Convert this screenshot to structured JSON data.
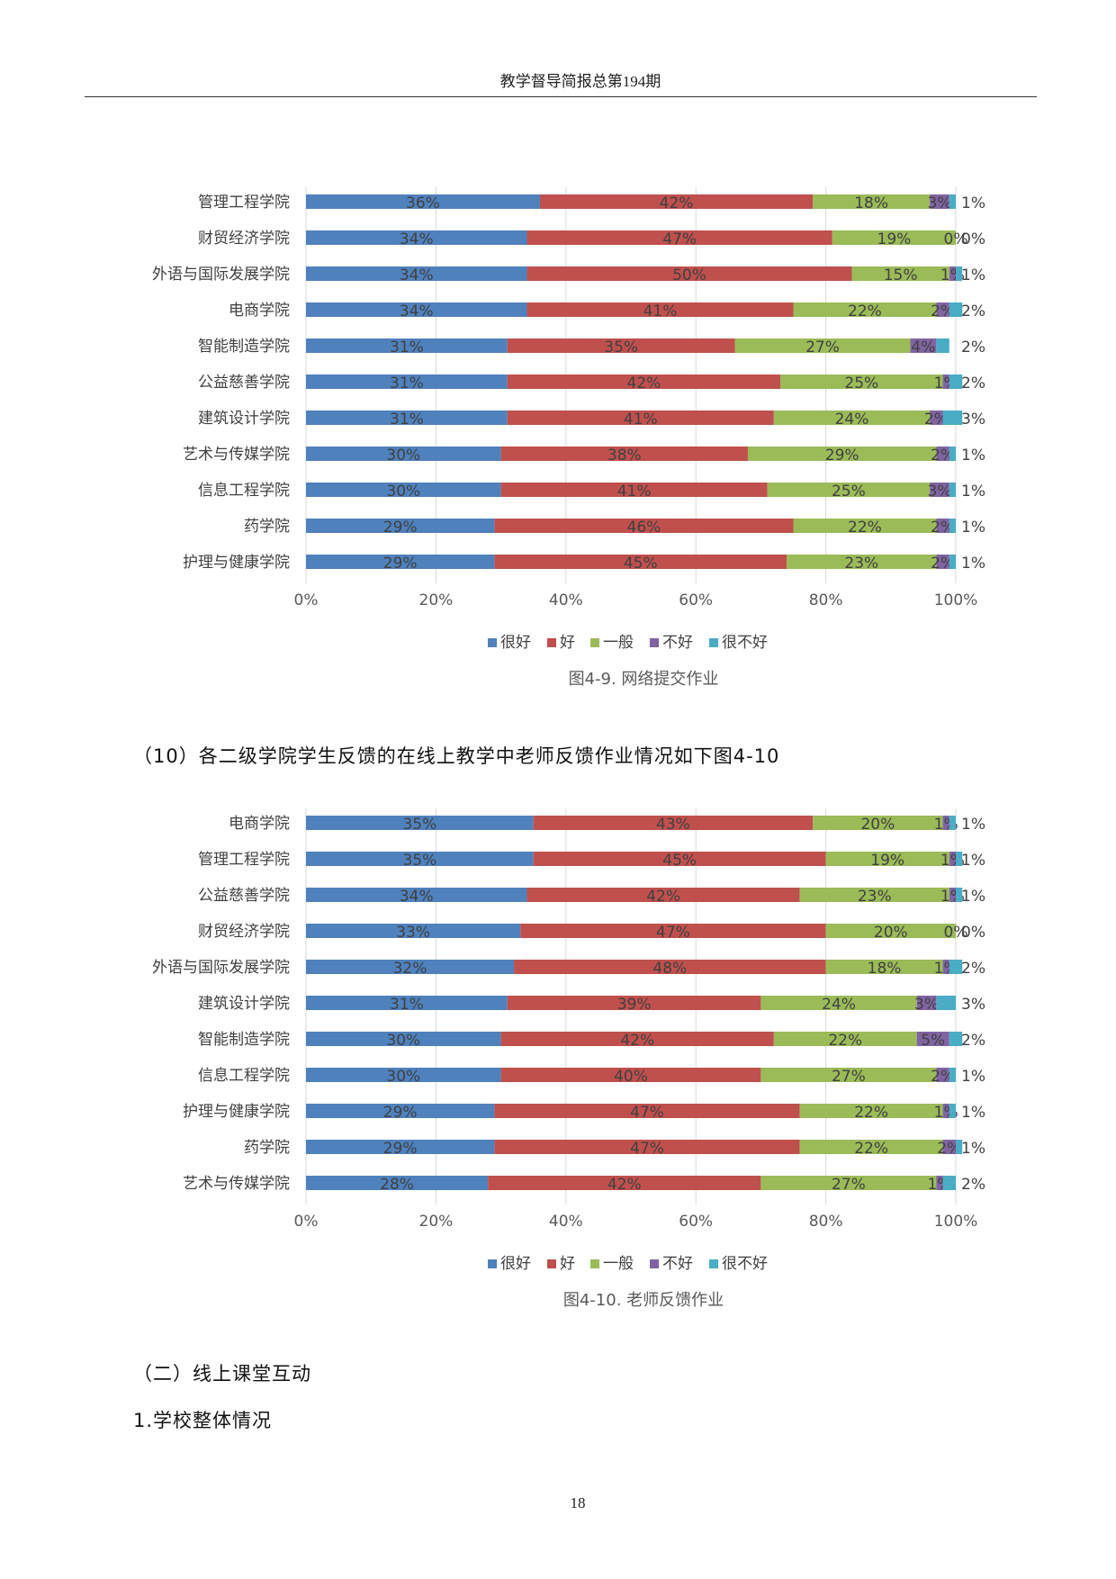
{
  "header": {
    "title": "教学督导简报总第194期"
  },
  "page_number": "18",
  "paragraphs": {
    "p1": "（10）各二级学院学生反馈的在线上教学中老师反馈作业情况如下图4-10",
    "p2": "（二）线上课堂互动",
    "p3": "1.学校整体情况"
  },
  "chart_data": [
    {
      "type": "bar",
      "orientation": "horizontal",
      "stacked": "percent",
      "title": "图4-9. 网络提交作业",
      "categories": [
        "管理工程学院",
        "财贸经济学院",
        "外语与国际发展学院",
        "电商学院",
        "智能制造学院",
        "公益慈善学院",
        "建筑设计学院",
        "艺术与传媒学院",
        "信息工程学院",
        "药学院",
        "护理与健康学院"
      ],
      "series": [
        {
          "name": "很好",
          "color": "#4F81BD",
          "values": [
            36,
            34,
            34,
            34,
            31,
            31,
            31,
            30,
            30,
            29,
            29
          ]
        },
        {
          "name": "好",
          "color": "#C0504D",
          "values": [
            42,
            47,
            50,
            41,
            35,
            42,
            41,
            38,
            41,
            46,
            45
          ]
        },
        {
          "name": "一般",
          "color": "#9BBB59",
          "values": [
            18,
            19,
            15,
            22,
            27,
            25,
            24,
            29,
            25,
            22,
            23
          ]
        },
        {
          "name": "不好",
          "color": "#8064A2",
          "values": [
            3,
            0,
            1,
            2,
            4,
            1,
            2,
            2,
            3,
            2,
            2
          ]
        },
        {
          "name": "很不好",
          "color": "#4BACC6",
          "values": [
            1,
            0,
            1,
            2,
            2,
            2,
            3,
            1,
            1,
            1,
            1
          ]
        }
      ],
      "xticks": [
        "0%",
        "20%",
        "40%",
        "60%",
        "80%",
        "100%"
      ],
      "xlim": [
        0,
        100
      ],
      "legend": "bottom",
      "grid": "vertical"
    },
    {
      "type": "bar",
      "orientation": "horizontal",
      "stacked": "percent",
      "title": "图4-10. 老师反馈作业",
      "categories": [
        "电商学院",
        "管理工程学院",
        "公益慈善学院",
        "财贸经济学院",
        "外语与国际发展学院",
        "建筑设计学院",
        "智能制造学院",
        "信息工程学院",
        "护理与健康学院",
        "药学院",
        "艺术与传媒学院"
      ],
      "series": [
        {
          "name": "很好",
          "color": "#4F81BD",
          "values": [
            35,
            35,
            34,
            33,
            32,
            31,
            30,
            30,
            29,
            29,
            28
          ]
        },
        {
          "name": "好",
          "color": "#C0504D",
          "values": [
            43,
            45,
            42,
            47,
            48,
            39,
            42,
            40,
            47,
            47,
            42
          ]
        },
        {
          "name": "一般",
          "color": "#9BBB59",
          "values": [
            20,
            19,
            23,
            20,
            18,
            24,
            22,
            27,
            22,
            22,
            27
          ]
        },
        {
          "name": "不好",
          "color": "#8064A2",
          "values": [
            1,
            1,
            1,
            0,
            1,
            3,
            5,
            2,
            1,
            2,
            1
          ]
        },
        {
          "name": "很不好",
          "color": "#4BACC6",
          "values": [
            1,
            1,
            1,
            0,
            2,
            3,
            2,
            1,
            1,
            1,
            2
          ]
        }
      ],
      "xticks": [
        "0%",
        "20%",
        "40%",
        "60%",
        "80%",
        "100%"
      ],
      "xlim": [
        0,
        100
      ],
      "legend": "bottom",
      "grid": "vertical"
    }
  ]
}
